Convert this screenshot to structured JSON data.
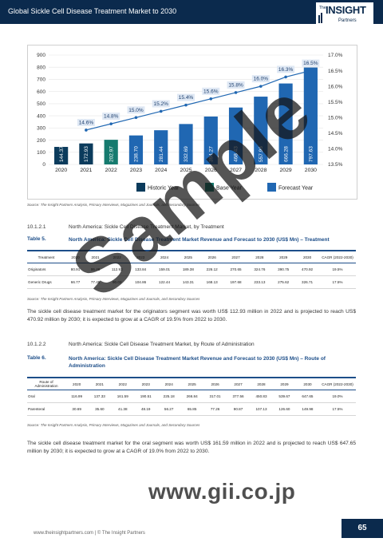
{
  "header": {
    "title": "Global Sickle Cell Disease Treatment Market to 2030"
  },
  "logo": {
    "the": "The",
    "brand": "INSIGHT",
    "sub": "Partners"
  },
  "chart_data": {
    "type": "bar",
    "categories": [
      "2020",
      "2021",
      "2022",
      "2023",
      "2024",
      "2025",
      "2026",
      "2027",
      "2028",
      "2029",
      "2030"
    ],
    "values": [
      144.37,
      172.93,
      202.97,
      238.7,
      281.44,
      332.69,
      394.27,
      468.43,
      557.96,
      666.28,
      797.63
    ],
    "value_labels": [
      "144.37",
      "172.93",
      "202.97",
      "238.70",
      "281.44",
      "332.69",
      "394.27",
      "468.43",
      "557.96",
      "666.28",
      "797.63"
    ],
    "growth_line": {
      "categories": [
        "2021",
        "2022",
        "2023",
        "2024",
        "2025",
        "2026",
        "2027",
        "2028",
        "2029",
        "2030"
      ],
      "values": [
        14.6,
        14.8,
        15.0,
        15.2,
        15.4,
        15.6,
        15.8,
        16.0,
        16.3,
        16.5
      ],
      "labels": [
        "14.6%",
        "14.8%",
        "15.0%",
        "15.2%",
        "15.4%",
        "15.6%",
        "15.8%",
        "16.0%",
        "16.3%",
        "16.5%"
      ]
    },
    "bar_kind": [
      "historic",
      "historic",
      "base",
      "forecast",
      "forecast",
      "forecast",
      "forecast",
      "forecast",
      "forecast",
      "forecast",
      "forecast"
    ],
    "ylim": [
      0,
      900
    ],
    "y_ticks": [
      "0",
      "100",
      "200",
      "300",
      "400",
      "500",
      "600",
      "700",
      "800",
      "900"
    ],
    "y2lim": [
      13.5,
      17.0
    ],
    "y2_ticks": [
      "13.5%",
      "14.0%",
      "14.5%",
      "15.0%",
      "15.5%",
      "16.0%",
      "16.5%",
      "17.0%"
    ],
    "legend": [
      "Historic Year",
      "Base Year",
      "Forecast Year"
    ],
    "colors": {
      "historic": "#0b3b5c",
      "base": "#157a6e",
      "forecast": "#2067b2",
      "line": "#2067b2",
      "label_bg": "#dfe8f4"
    }
  },
  "chart_source": "Source: The Insight Partners Analysis, Primary Interviews, Magazines and Journals, and Secondary Sources",
  "sec1": {
    "num": "10.1.2.1",
    "text": "North America: Sickle Cell Disease Treatment Market, by Treatment"
  },
  "table5": {
    "label": "Table 5.",
    "title": "North America: Sickle Cell Disease Treatment Market Revenue and Forecast to 2030 (US$ Mn) – Treatment",
    "header": [
      "Treatment",
      "2020",
      "2021",
      "2022",
      "2023",
      "2024",
      "2025",
      "2026",
      "2027",
      "2028",
      "2029",
      "2030",
      "CAGR (2022-2030)"
    ],
    "rows": [
      [
        "Originators",
        "80.91",
        "95.48",
        "112.93",
        "133.84",
        "159.01",
        "189.38",
        "226.12",
        "270.65",
        "324.76",
        "390.75",
        "470.92",
        "19.5%"
      ],
      [
        "Generic Drugs",
        "66.77",
        "77.45",
        "90.03",
        "104.86",
        "122.44",
        "143.31",
        "168.13",
        "197.68",
        "233.13",
        "275.62",
        "326.71",
        "17.5%"
      ]
    ],
    "source": "Source: The Insight Partners Analysis, Primary Interviews, Magazines and Journals, and Secondary Sources"
  },
  "para1": "The sickle cell disease treatment market for the originators segment was worth US$ 112.93 million in 2022 and is projected to reach US$ 470.92 million by 2030; it is expected to grow at a CAGR of 19.5% from 2022 to 2030.",
  "sec2": {
    "num": "10.1.2.2",
    "text": "North America: Sickle Cell Disease Treatment Market, by Route of Administration"
  },
  "table6": {
    "label": "Table 6.",
    "title": "North America: Sickle Cell Disease Treatment Market Revenue and Forecast to 2030 (US$ Mn) – Route of Administration",
    "header": [
      "Route of Administration",
      "2020",
      "2021",
      "2022",
      "2023",
      "2024",
      "2025",
      "2026",
      "2027",
      "2028",
      "2029",
      "2030",
      "CAGR (2022-2030)"
    ],
    "rows": [
      [
        "Oral",
        "116.99",
        "137.33",
        "161.59",
        "190.51",
        "225.18",
        "266.84",
        "317.01",
        "377.56",
        "450.83",
        "539.67",
        "647.65",
        "19.0%"
      ],
      [
        "Parenteral",
        "30.69",
        "35.60",
        "41.38",
        "48.19",
        "56.27",
        "65.85",
        "77.26",
        "90.87",
        "107.13",
        "126.60",
        "149.98",
        "17.5%"
      ]
    ],
    "source": "Source: The Insight Partners Analysis, Primary Interviews, Magazines and Journals, and Secondary Sources"
  },
  "para2": "The sickle cell disease treatment market for the oral segment was worth US$ 161.59 million in 2022 and is projected to reach US$ 647.65 million by 2030; it is expected to grow at a CAGR of 19.0% from 2022 to 2030.",
  "footer": {
    "url": "www.theinsightpartners.com    |    © The Insight Partners",
    "page": "65"
  },
  "watermark": {
    "sample": "Sample",
    "site": "www.gii.co.jp"
  }
}
